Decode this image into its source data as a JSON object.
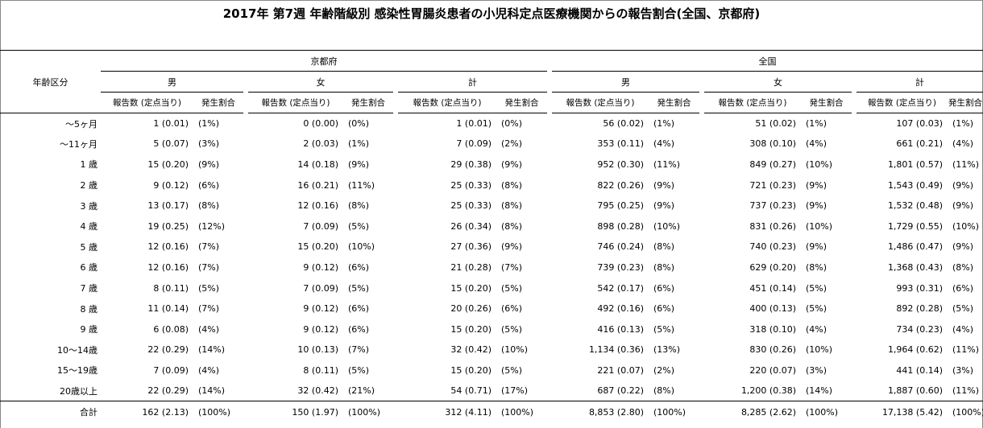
{
  "title": "2017年 第7週 年齢階級別 感染性胃腸炎患者の小児科定点医療機関からの報告割合(全国、京都府)",
  "header": {
    "age_label": "年齢区分",
    "regions": [
      "京都府",
      "全国"
    ],
    "sexes": [
      "男",
      "女",
      "計"
    ],
    "count_label": "報告数 (定点当り)",
    "pct_label": "発生割合"
  },
  "rows": [
    {
      "age": "～5ヶ月",
      "values": [
        "1 (0.01)",
        "(1%)",
        "0 (0.00)",
        "(0%)",
        "1 (0.01)",
        "(0%)",
        "56 (0.02)",
        "(1%)",
        "51 (0.02)",
        "(1%)",
        "107 (0.03)",
        "(1%)"
      ]
    },
    {
      "age": "～11ヶ月",
      "values": [
        "5 (0.07)",
        "(3%)",
        "2 (0.03)",
        "(1%)",
        "7 (0.09)",
        "(2%)",
        "353 (0.11)",
        "(4%)",
        "308 (0.10)",
        "(4%)",
        "661 (0.21)",
        "(4%)"
      ]
    },
    {
      "age": "1 歳",
      "values": [
        "15 (0.20)",
        "(9%)",
        "14 (0.18)",
        "(9%)",
        "29 (0.38)",
        "(9%)",
        "952 (0.30)",
        "(11%)",
        "849 (0.27)",
        "(10%)",
        "1,801 (0.57)",
        "(11%)"
      ]
    },
    {
      "age": "2 歳",
      "values": [
        "9 (0.12)",
        "(6%)",
        "16 (0.21)",
        "(11%)",
        "25 (0.33)",
        "(8%)",
        "822 (0.26)",
        "(9%)",
        "721 (0.23)",
        "(9%)",
        "1,543 (0.49)",
        "(9%)"
      ]
    },
    {
      "age": "3 歳",
      "values": [
        "13 (0.17)",
        "(8%)",
        "12 (0.16)",
        "(8%)",
        "25 (0.33)",
        "(8%)",
        "795 (0.25)",
        "(9%)",
        "737 (0.23)",
        "(9%)",
        "1,532 (0.48)",
        "(9%)"
      ]
    },
    {
      "age": "4 歳",
      "values": [
        "19 (0.25)",
        "(12%)",
        "7 (0.09)",
        "(5%)",
        "26 (0.34)",
        "(8%)",
        "898 (0.28)",
        "(10%)",
        "831 (0.26)",
        "(10%)",
        "1,729 (0.55)",
        "(10%)"
      ]
    },
    {
      "age": "5 歳",
      "values": [
        "12 (0.16)",
        "(7%)",
        "15 (0.20)",
        "(10%)",
        "27 (0.36)",
        "(9%)",
        "746 (0.24)",
        "(8%)",
        "740 (0.23)",
        "(9%)",
        "1,486 (0.47)",
        "(9%)"
      ]
    },
    {
      "age": "6 歳",
      "values": [
        "12 (0.16)",
        "(7%)",
        "9 (0.12)",
        "(6%)",
        "21 (0.28)",
        "(7%)",
        "739 (0.23)",
        "(8%)",
        "629 (0.20)",
        "(8%)",
        "1,368 (0.43)",
        "(8%)"
      ]
    },
    {
      "age": "7 歳",
      "values": [
        "8 (0.11)",
        "(5%)",
        "7 (0.09)",
        "(5%)",
        "15 (0.20)",
        "(5%)",
        "542 (0.17)",
        "(6%)",
        "451 (0.14)",
        "(5%)",
        "993 (0.31)",
        "(6%)"
      ]
    },
    {
      "age": "8 歳",
      "values": [
        "11 (0.14)",
        "(7%)",
        "9 (0.12)",
        "(6%)",
        "20 (0.26)",
        "(6%)",
        "492 (0.16)",
        "(6%)",
        "400 (0.13)",
        "(5%)",
        "892 (0.28)",
        "(5%)"
      ]
    },
    {
      "age": "9 歳",
      "values": [
        "6 (0.08)",
        "(4%)",
        "9 (0.12)",
        "(6%)",
        "15 (0.20)",
        "(5%)",
        "416 (0.13)",
        "(5%)",
        "318 (0.10)",
        "(4%)",
        "734 (0.23)",
        "(4%)"
      ]
    },
    {
      "age": "10～14歳",
      "values": [
        "22 (0.29)",
        "(14%)",
        "10 (0.13)",
        "(7%)",
        "32 (0.42)",
        "(10%)",
        "1,134 (0.36)",
        "(13%)",
        "830 (0.26)",
        "(10%)",
        "1,964 (0.62)",
        "(11%)"
      ]
    },
    {
      "age": "15～19歳",
      "values": [
        "7 (0.09)",
        "(4%)",
        "8 (0.11)",
        "(5%)",
        "15 (0.20)",
        "(5%)",
        "221 (0.07)",
        "(2%)",
        "220 (0.07)",
        "(3%)",
        "441 (0.14)",
        "(3%)"
      ]
    },
    {
      "age": "20歳以上",
      "values": [
        "22 (0.29)",
        "(14%)",
        "32 (0.42)",
        "(21%)",
        "54 (0.71)",
        "(17%)",
        "687 (0.22)",
        "(8%)",
        "1,200 (0.38)",
        "(14%)",
        "1,887 (0.60)",
        "(11%)"
      ]
    }
  ],
  "total": {
    "age": "合計",
    "values": [
      "162 (2.13)",
      "(100%)",
      "150 (1.97)",
      "(100%)",
      "312 (4.11)",
      "(100%)",
      "8,853 (2.80)",
      "(100%)",
      "8,285 (2.62)",
      "(100%)",
      "17,138 (5.42)",
      "(100%)"
    ]
  }
}
